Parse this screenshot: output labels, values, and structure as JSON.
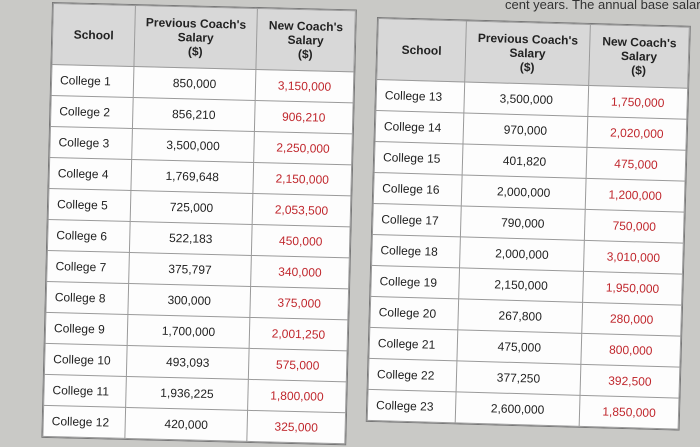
{
  "header_fragment": "cent years. The annual base salarie",
  "headers": {
    "school": "School",
    "previous": [
      "Previous Coach's",
      "Salary",
      "($)"
    ],
    "new": [
      "New Coach's",
      "Salary",
      "($)"
    ]
  },
  "left_rows": [
    {
      "school": "College 1",
      "previous": "850,000",
      "new": "3,150,000"
    },
    {
      "school": "College 2",
      "previous": "856,210",
      "new": "906,210"
    },
    {
      "school": "College 3",
      "previous": "3,500,000",
      "new": "2,250,000"
    },
    {
      "school": "College 4",
      "previous": "1,769,648",
      "new": "2,150,000"
    },
    {
      "school": "College 5",
      "previous": "725,000",
      "new": "2,053,500"
    },
    {
      "school": "College 6",
      "previous": "522,183",
      "new": "450,000"
    },
    {
      "school": "College 7",
      "previous": "375,797",
      "new": "340,000"
    },
    {
      "school": "College 8",
      "previous": "300,000",
      "new": "375,000"
    },
    {
      "school": "College 9",
      "previous": "1,700,000",
      "new": "2,001,250"
    },
    {
      "school": "College 10",
      "previous": "493,093",
      "new": "575,000"
    },
    {
      "school": "College 11",
      "previous": "1,936,225",
      "new": "1,800,000"
    },
    {
      "school": "College 12",
      "previous": "420,000",
      "new": "325,000"
    }
  ],
  "right_rows": [
    {
      "school": "College 13",
      "previous": "3,500,000",
      "new": "1,750,000"
    },
    {
      "school": "College 14",
      "previous": "970,000",
      "new": "2,020,000"
    },
    {
      "school": "College 15",
      "previous": "401,820",
      "new": "475,000"
    },
    {
      "school": "College 16",
      "previous": "2,000,000",
      "new": "1,200,000"
    },
    {
      "school": "College 17",
      "previous": "790,000",
      "new": "750,000"
    },
    {
      "school": "College 18",
      "previous": "2,000,000",
      "new": "3,010,000"
    },
    {
      "school": "College 19",
      "previous": "2,150,000",
      "new": "1,950,000"
    },
    {
      "school": "College 20",
      "previous": "267,800",
      "new": "280,000"
    },
    {
      "school": "College 21",
      "previous": "475,000",
      "new": "800,000"
    },
    {
      "school": "College 22",
      "previous": "377,250",
      "new": "392,500"
    },
    {
      "school": "College 23",
      "previous": "2,600,000",
      "new": "1,850,000"
    }
  ]
}
